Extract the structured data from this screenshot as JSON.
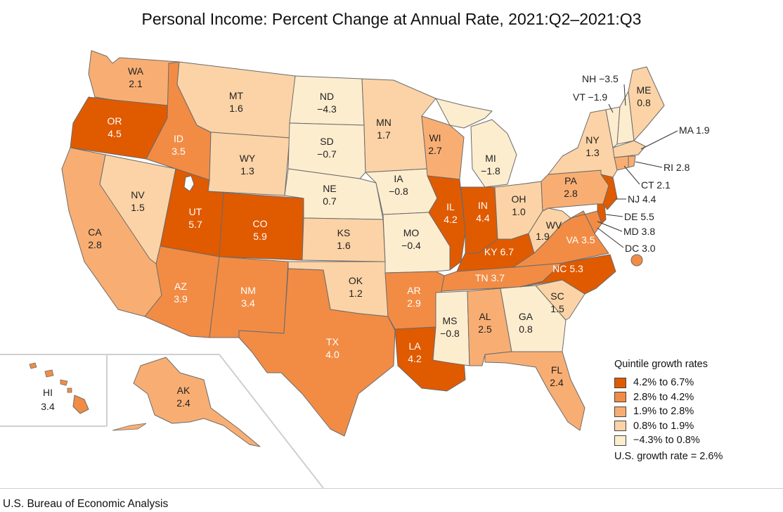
{
  "title": "Personal Income: Percent Change at Annual Rate, 2021:Q2–2021:Q3",
  "source": "U.S. Bureau of Economic Analysis",
  "legend": {
    "title": "Quintile growth rates",
    "items": [
      {
        "label": "4.2% to 6.7%",
        "color": "#e05a00"
      },
      {
        "label": "2.8% to 4.2%",
        "color": "#f28c45"
      },
      {
        "label": "1.9% to 2.8%",
        "color": "#f8ae73"
      },
      {
        "label": "0.8% to 1.9%",
        "color": "#fcd3a6"
      },
      {
        "label": "−4.3% to 0.8%",
        "color": "#fdedcf"
      }
    ],
    "us_rate": "U.S. growth rate = 2.6%"
  },
  "states": {
    "WA": {
      "abbr": "WA",
      "value": "2.1"
    },
    "OR": {
      "abbr": "OR",
      "value": "4.5"
    },
    "CA": {
      "abbr": "CA",
      "value": "2.8"
    },
    "NV": {
      "abbr": "NV",
      "value": "1.5"
    },
    "ID": {
      "abbr": "ID",
      "value": "3.5"
    },
    "MT": {
      "abbr": "MT",
      "value": "1.6"
    },
    "WY": {
      "abbr": "WY",
      "value": "1.3"
    },
    "UT": {
      "abbr": "UT",
      "value": "5.7"
    },
    "AZ": {
      "abbr": "AZ",
      "value": "3.9"
    },
    "CO": {
      "abbr": "CO",
      "value": "5.9"
    },
    "NM": {
      "abbr": "NM",
      "value": "3.4"
    },
    "ND": {
      "abbr": "ND",
      "value": "−4.3"
    },
    "SD": {
      "abbr": "SD",
      "value": "−0.7"
    },
    "NE": {
      "abbr": "NE",
      "value": "0.7"
    },
    "KS": {
      "abbr": "KS",
      "value": "1.6"
    },
    "OK": {
      "abbr": "OK",
      "value": "1.2"
    },
    "TX": {
      "abbr": "TX",
      "value": "4.0"
    },
    "MN": {
      "abbr": "MN",
      "value": "1.7"
    },
    "IA": {
      "abbr": "IA",
      "value": "−0.8"
    },
    "MO": {
      "abbr": "MO",
      "value": "−0.4"
    },
    "AR": {
      "abbr": "AR",
      "value": "2.9"
    },
    "LA": {
      "abbr": "LA",
      "value": "4.2"
    },
    "WI": {
      "abbr": "WI",
      "value": "2.7"
    },
    "IL": {
      "abbr": "IL",
      "value": "4.2"
    },
    "MI": {
      "abbr": "MI",
      "value": "−1.8"
    },
    "IN": {
      "abbr": "IN",
      "value": "4.4"
    },
    "OH": {
      "abbr": "OH",
      "value": "1.0"
    },
    "KY": {
      "abbr": "KY",
      "value": "6.7"
    },
    "TN": {
      "abbr": "TN",
      "value": "3.7"
    },
    "MS": {
      "abbr": "MS",
      "value": "−0.8"
    },
    "AL": {
      "abbr": "AL",
      "value": "2.5"
    },
    "GA": {
      "abbr": "GA",
      "value": "0.8"
    },
    "FL": {
      "abbr": "FL",
      "value": "2.4"
    },
    "SC": {
      "abbr": "SC",
      "value": "1.5"
    },
    "NC": {
      "abbr": "NC",
      "value": "5.3"
    },
    "VA": {
      "abbr": "VA",
      "value": "3.5"
    },
    "WV": {
      "abbr": "WV",
      "value": "1.9"
    },
    "PA": {
      "abbr": "PA",
      "value": "2.8"
    },
    "NY": {
      "abbr": "NY",
      "value": "1.3"
    },
    "ME": {
      "abbr": "ME",
      "value": "0.8"
    },
    "HI": {
      "abbr": "HI",
      "value": "3.4"
    },
    "AK": {
      "abbr": "AK",
      "value": "2.4"
    }
  },
  "callouts": {
    "NH": "NH −3.5",
    "VT": "VT −1.9",
    "MA": "MA 1.9",
    "RI": "RI 2.8",
    "CT": "CT 2.1",
    "NJ": "NJ 4.4",
    "DE": "DE 5.5",
    "MD": "MD 3.8",
    "DC": "DC 3.0"
  }
}
